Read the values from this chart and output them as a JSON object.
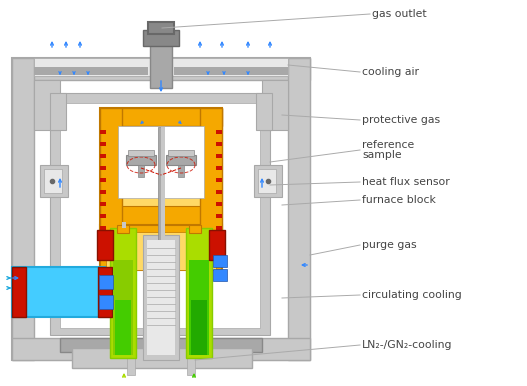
{
  "labels": {
    "gas_outlet": "gas outlet",
    "cooling_air": "cooling air",
    "protective_gas": "protective gas",
    "reference": "reference",
    "sample": "sample",
    "heat_flux_sensor": "heat flux sensor",
    "furnace_block": "furnace block",
    "purge_gas": "purge gas",
    "circulating_cooling": "circulating cooling",
    "ln2_cooling": "LN₂-/GN₂-cooling"
  },
  "colors": {
    "bg": "#ffffff",
    "gray1": "#e8e8e8",
    "gray2": "#c8c8c8",
    "gray3": "#a8a8a8",
    "gray4": "#888888",
    "gray5": "#686868",
    "gold": "#f5a800",
    "gold_in": "#ffd966",
    "gold_dark": "#c07800",
    "lime": "#aadd00",
    "lime2": "#88cc00",
    "green": "#44cc00",
    "green2": "#22aa00",
    "cyan": "#44ccff",
    "cyan2": "#22aadd",
    "blue": "#3388ff",
    "red": "#cc1100",
    "red2": "#881100",
    "white": "#ffffff",
    "lc": "#aaaaaa",
    "tc": "#444444"
  },
  "fig_w": 5.27,
  "fig_h": 3.86,
  "dpi": 100
}
